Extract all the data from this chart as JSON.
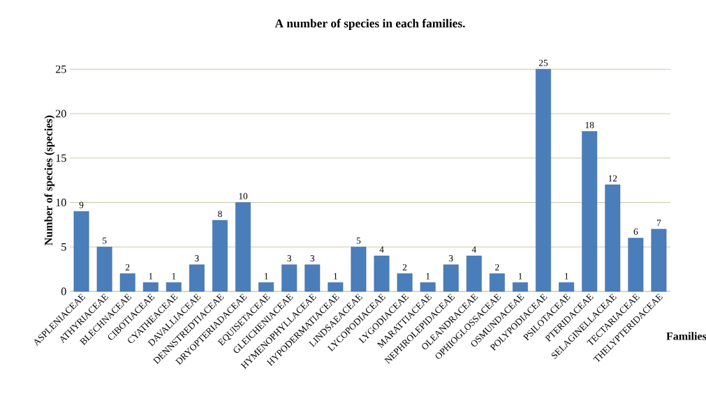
{
  "chart_data": {
    "type": "bar",
    "title": "A number of species in each families.",
    "xlabel": "Families",
    "ylabel": "Number of species (species)",
    "categories": [
      "ASPLENIACEAE",
      "ATHYRIACEAE",
      "BLECHNACEAE",
      "CIBOTIACEAE",
      "CYATHEACEAE",
      "DAVALLIACEAE",
      "DENNSTREDTIACEAE",
      "DRYOPTERIADACEAE",
      "EQUISETACEAE",
      "GLEICHENIACEAE",
      "HYMENOPHYLLACEAE",
      "HYPODERMATIACEAE",
      "LINDSAEACEAE",
      "LYCOPODIACEAE",
      "LYGODIACEAE",
      "MARATTIACEAE",
      "NEPHROLEPIDACEAE",
      "OLEANDRACEAE",
      "OPHIOGLOSSACEAE",
      "OSMUNDACEAE",
      "POLYPODIACEAE",
      "PSILOTACEAE",
      "PTERIDACEAE",
      "SELAGINELLACEAE",
      "TECTARIACEAE",
      "THELYPTERIDACEAE"
    ],
    "values": [
      9,
      5,
      2,
      1,
      1,
      3,
      8,
      10,
      1,
      3,
      3,
      1,
      5,
      4,
      2,
      1,
      3,
      4,
      2,
      1,
      25,
      1,
      18,
      12,
      6,
      7
    ],
    "color": "#4a7ebb",
    "ylim": [
      0,
      25
    ],
    "yticks": [
      0,
      5,
      10,
      15,
      20,
      25
    ],
    "grid": "y",
    "data_labels": true
  }
}
